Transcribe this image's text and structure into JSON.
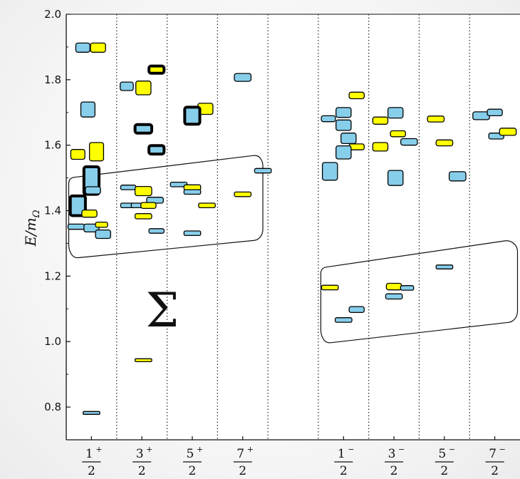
{
  "chart_data": {
    "type": "scatter",
    "title": "",
    "ylabel": {
      "main": "E/m",
      "sub": "Ω"
    },
    "ylim": [
      0.7,
      2.0
    ],
    "yticks": [
      "0.8",
      "1.0",
      "1.2",
      "1.4",
      "1.6",
      "1.8",
      "2.0"
    ],
    "ytick_values": [
      0.8,
      1.0,
      1.2,
      1.4,
      1.6,
      1.8,
      2.0
    ],
    "xlim": [
      0,
      9.0
    ],
    "categories": [
      {
        "x": 0.5,
        "num": "1",
        "sign": "+",
        "den": "2"
      },
      {
        "x": 1.5,
        "num": "3",
        "sign": "+",
        "den": "2"
      },
      {
        "x": 2.5,
        "num": "5",
        "sign": "+",
        "den": "2"
      },
      {
        "x": 3.5,
        "num": "7",
        "sign": "+",
        "den": "2"
      },
      {
        "x": 5.5,
        "num": "1",
        "sign": "−",
        "den": "2"
      },
      {
        "x": 6.5,
        "num": "3",
        "sign": "−",
        "den": "2"
      },
      {
        "x": 7.5,
        "num": "5",
        "sign": "−",
        "den": "2"
      },
      {
        "x": 8.5,
        "num": "7",
        "sign": "−",
        "den": "2"
      }
    ],
    "separators": [
      1,
      2,
      3,
      4,
      5,
      6,
      7,
      8
    ],
    "annotation": "Σ",
    "colors": {
      "blue": "#87ceeb",
      "yellow": "#ffff00",
      "edge": "#000000"
    },
    "levels": [
      {
        "x": 0.33,
        "y": 1.898,
        "h": 0.028,
        "w": 0.28,
        "c": "blue",
        "b": false
      },
      {
        "x": 0.63,
        "y": 1.898,
        "h": 0.028,
        "w": 0.3,
        "c": "yellow",
        "b": false
      },
      {
        "x": 0.43,
        "y": 1.709,
        "h": 0.046,
        "w": 0.28,
        "c": "blue",
        "b": false
      },
      {
        "x": 0.23,
        "y": 1.572,
        "h": 0.03,
        "w": 0.28,
        "c": "yellow",
        "b": false
      },
      {
        "x": 0.6,
        "y": 1.58,
        "h": 0.056,
        "w": 0.28,
        "c": "yellow",
        "b": false
      },
      {
        "x": 0.5,
        "y": 1.492,
        "h": 0.084,
        "w": 0.3,
        "c": "blue",
        "b": true
      },
      {
        "x": 0.53,
        "y": 1.462,
        "h": 0.022,
        "w": 0.3,
        "c": "blue",
        "b": false
      },
      {
        "x": 0.23,
        "y": 1.415,
        "h": 0.06,
        "w": 0.3,
        "c": "blue",
        "b": true
      },
      {
        "x": 0.46,
        "y": 1.391,
        "h": 0.022,
        "w": 0.3,
        "c": "yellow",
        "b": false
      },
      {
        "x": 0.2,
        "y": 1.351,
        "h": 0.016,
        "w": 0.33,
        "c": "blue",
        "b": false
      },
      {
        "x": 0.5,
        "y": 1.347,
        "h": 0.024,
        "w": 0.3,
        "c": "blue",
        "b": false
      },
      {
        "x": 0.7,
        "y": 1.357,
        "h": 0.016,
        "w": 0.24,
        "c": "yellow",
        "b": false
      },
      {
        "x": 0.73,
        "y": 1.328,
        "h": 0.026,
        "w": 0.3,
        "c": "blue",
        "b": false
      },
      {
        "x": 0.5,
        "y": 0.782,
        "h": 0.008,
        "w": 0.33,
        "c": "blue",
        "b": false
      },
      {
        "x": 1.2,
        "y": 1.78,
        "h": 0.026,
        "w": 0.26,
        "c": "blue",
        "b": false
      },
      {
        "x": 1.53,
        "y": 1.775,
        "h": 0.042,
        "w": 0.3,
        "c": "yellow",
        "b": false
      },
      {
        "x": 1.79,
        "y": 1.831,
        "h": 0.022,
        "w": 0.3,
        "c": "yellow",
        "b": true
      },
      {
        "x": 1.53,
        "y": 1.65,
        "h": 0.026,
        "w": 0.33,
        "c": "blue",
        "b": true
      },
      {
        "x": 1.79,
        "y": 1.586,
        "h": 0.026,
        "w": 0.3,
        "c": "blue",
        "b": true
      },
      {
        "x": 1.23,
        "y": 1.471,
        "h": 0.014,
        "w": 0.3,
        "c": "blue",
        "b": false
      },
      {
        "x": 1.53,
        "y": 1.46,
        "h": 0.028,
        "w": 0.33,
        "c": "yellow",
        "b": false
      },
      {
        "x": 1.76,
        "y": 1.432,
        "h": 0.018,
        "w": 0.33,
        "c": "blue",
        "b": false
      },
      {
        "x": 1.23,
        "y": 1.416,
        "h": 0.014,
        "w": 0.3,
        "c": "blue",
        "b": false
      },
      {
        "x": 1.43,
        "y": 1.416,
        "h": 0.014,
        "w": 0.28,
        "c": "blue",
        "b": false
      },
      {
        "x": 1.63,
        "y": 1.416,
        "h": 0.018,
        "w": 0.3,
        "c": "yellow",
        "b": false
      },
      {
        "x": 1.53,
        "y": 1.383,
        "h": 0.016,
        "w": 0.33,
        "c": "yellow",
        "b": false
      },
      {
        "x": 1.79,
        "y": 1.338,
        "h": 0.014,
        "w": 0.3,
        "c": "blue",
        "b": false
      },
      {
        "x": 1.53,
        "y": 0.943,
        "h": 0.009,
        "w": 0.33,
        "c": "yellow",
        "b": false
      },
      {
        "x": 2.76,
        "y": 1.711,
        "h": 0.034,
        "w": 0.3,
        "c": "yellow",
        "b": false
      },
      {
        "x": 2.5,
        "y": 1.69,
        "h": 0.052,
        "w": 0.3,
        "c": "blue",
        "b": true
      },
      {
        "x": 2.23,
        "y": 1.48,
        "h": 0.014,
        "w": 0.33,
        "c": "blue",
        "b": false
      },
      {
        "x": 2.5,
        "y": 1.471,
        "h": 0.016,
        "w": 0.33,
        "c": "yellow",
        "b": false
      },
      {
        "x": 2.5,
        "y": 1.457,
        "h": 0.014,
        "w": 0.33,
        "c": "blue",
        "b": false
      },
      {
        "x": 2.79,
        "y": 1.416,
        "h": 0.014,
        "w": 0.33,
        "c": "yellow",
        "b": false
      },
      {
        "x": 2.5,
        "y": 1.331,
        "h": 0.014,
        "w": 0.33,
        "c": "blue",
        "b": false
      },
      {
        "x": 3.5,
        "y": 1.807,
        "h": 0.024,
        "w": 0.33,
        "c": "blue",
        "b": false
      },
      {
        "x": 3.9,
        "y": 1.522,
        "h": 0.014,
        "w": 0.33,
        "c": "blue",
        "b": false
      },
      {
        "x": 3.5,
        "y": 1.45,
        "h": 0.014,
        "w": 0.33,
        "c": "yellow",
        "b": false
      },
      {
        "x": 5.2,
        "y": 1.681,
        "h": 0.018,
        "w": 0.28,
        "c": "blue",
        "b": false
      },
      {
        "x": 5.5,
        "y": 1.7,
        "h": 0.03,
        "w": 0.3,
        "c": "blue",
        "b": false
      },
      {
        "x": 5.5,
        "y": 1.661,
        "h": 0.032,
        "w": 0.3,
        "c": "blue",
        "b": false
      },
      {
        "x": 5.76,
        "y": 1.752,
        "h": 0.02,
        "w": 0.3,
        "c": "yellow",
        "b": false
      },
      {
        "x": 5.6,
        "y": 1.621,
        "h": 0.032,
        "w": 0.3,
        "c": "blue",
        "b": false
      },
      {
        "x": 5.76,
        "y": 1.595,
        "h": 0.018,
        "w": 0.3,
        "c": "yellow",
        "b": false
      },
      {
        "x": 5.5,
        "y": 1.578,
        "h": 0.04,
        "w": 0.3,
        "c": "blue",
        "b": false
      },
      {
        "x": 5.23,
        "y": 1.52,
        "h": 0.054,
        "w": 0.3,
        "c": "blue",
        "b": false
      },
      {
        "x": 5.23,
        "y": 1.165,
        "h": 0.014,
        "w": 0.33,
        "c": "yellow",
        "b": false
      },
      {
        "x": 5.76,
        "y": 1.098,
        "h": 0.018,
        "w": 0.3,
        "c": "blue",
        "b": false
      },
      {
        "x": 5.5,
        "y": 1.066,
        "h": 0.014,
        "w": 0.33,
        "c": "blue",
        "b": false
      },
      {
        "x": 6.23,
        "y": 1.675,
        "h": 0.022,
        "w": 0.3,
        "c": "yellow",
        "b": false
      },
      {
        "x": 6.53,
        "y": 1.699,
        "h": 0.032,
        "w": 0.3,
        "c": "blue",
        "b": false
      },
      {
        "x": 6.58,
        "y": 1.635,
        "h": 0.018,
        "w": 0.3,
        "c": "yellow",
        "b": false
      },
      {
        "x": 6.8,
        "y": 1.61,
        "h": 0.02,
        "w": 0.33,
        "c": "blue",
        "b": false
      },
      {
        "x": 6.23,
        "y": 1.595,
        "h": 0.026,
        "w": 0.3,
        "c": "yellow",
        "b": false
      },
      {
        "x": 6.53,
        "y": 1.5,
        "h": 0.046,
        "w": 0.3,
        "c": "blue",
        "b": false
      },
      {
        "x": 6.5,
        "y": 1.168,
        "h": 0.02,
        "w": 0.3,
        "c": "yellow",
        "b": false
      },
      {
        "x": 6.76,
        "y": 1.164,
        "h": 0.014,
        "w": 0.26,
        "c": "blue",
        "b": false
      },
      {
        "x": 6.5,
        "y": 1.138,
        "h": 0.016,
        "w": 0.33,
        "c": "blue",
        "b": false
      },
      {
        "x": 7.33,
        "y": 1.68,
        "h": 0.018,
        "w": 0.33,
        "c": "yellow",
        "b": false
      },
      {
        "x": 7.5,
        "y": 1.607,
        "h": 0.018,
        "w": 0.33,
        "c": "yellow",
        "b": false
      },
      {
        "x": 7.76,
        "y": 1.505,
        "h": 0.028,
        "w": 0.33,
        "c": "blue",
        "b": false
      },
      {
        "x": 7.5,
        "y": 1.228,
        "h": 0.012,
        "w": 0.33,
        "c": "blue",
        "b": false
      },
      {
        "x": 8.23,
        "y": 1.69,
        "h": 0.024,
        "w": 0.33,
        "c": "blue",
        "b": false
      },
      {
        "x": 8.5,
        "y": 1.7,
        "h": 0.02,
        "w": 0.3,
        "c": "blue",
        "b": false
      },
      {
        "x": 8.53,
        "y": 1.628,
        "h": 0.018,
        "w": 0.3,
        "c": "blue",
        "b": false
      },
      {
        "x": 8.76,
        "y": 1.641,
        "h": 0.022,
        "w": 0.33,
        "c": "yellow",
        "b": false
      }
    ],
    "outlines": [
      {
        "points": [
          [
            0.05,
            1.5
          ],
          [
            3.8,
            1.57
          ],
          [
            3.9,
            1.55
          ],
          [
            3.9,
            1.33
          ],
          [
            3.8,
            1.31
          ],
          [
            0.15,
            1.255
          ],
          [
            0.05,
            1.28
          ]
        ]
      },
      {
        "points": [
          [
            5.05,
            1.225
          ],
          [
            8.8,
            1.31
          ],
          [
            8.95,
            1.29
          ],
          [
            8.95,
            1.08
          ],
          [
            8.85,
            1.06
          ],
          [
            5.15,
            0.995
          ],
          [
            5.05,
            1.02
          ]
        ]
      }
    ]
  }
}
